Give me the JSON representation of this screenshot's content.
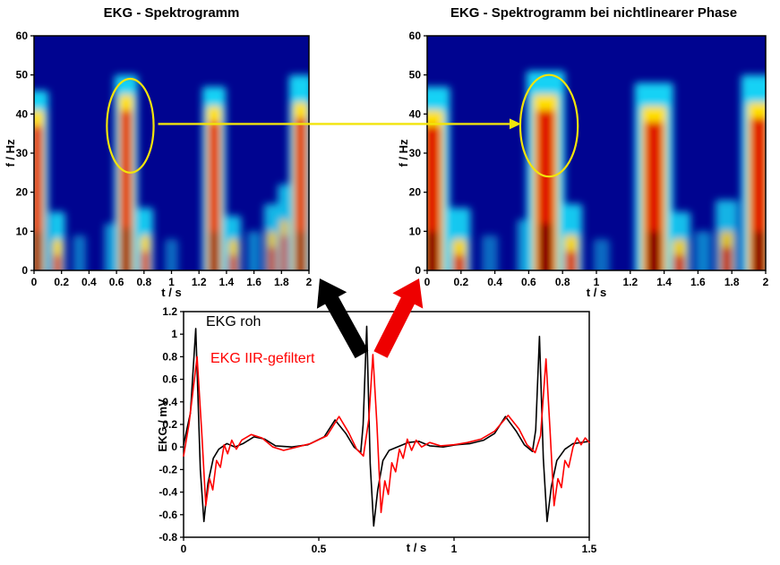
{
  "annotations": {
    "highlight_color": "#f2e40a",
    "connector_arrow": {
      "color": "#f2e40a"
    },
    "raw_arrow": {
      "color": "#000000"
    },
    "filtered_arrow": {
      "color": "#ee0000"
    },
    "left_ellipse": {
      "t": 0.7,
      "f": 37,
      "rt": 0.17,
      "rf": 12
    },
    "right_ellipse": {
      "t": 0.72,
      "f": 37,
      "rt": 0.17,
      "rf": 13
    }
  },
  "chart_data": [
    {
      "id": "spectrogram_left",
      "type": "heatmap",
      "title": "EKG - Spektrogramm",
      "xlabel": "t / s",
      "ylabel": "f / Hz",
      "xlim": [
        0,
        2
      ],
      "ylim": [
        0,
        60
      ],
      "xticks": [
        "0",
        "0.2",
        "0.4",
        "0.6",
        "0.8",
        "1",
        "1.2",
        "1.4",
        "1.6",
        "1.8",
        "2"
      ],
      "yticks": [
        "0",
        "10",
        "20",
        "30",
        "40",
        "50",
        "60"
      ],
      "colormap": "jet",
      "colors": {
        "background": "#000490",
        "cool": "#17d2f5",
        "mid": "#ffe000",
        "hot": "#e01800",
        "dark": "#7d0000"
      },
      "bursts": [
        {
          "t": 0.02,
          "w": 0.09,
          "cool": 46,
          "hot": 37,
          "dark": 10,
          "a": 1
        },
        {
          "t": 0.17,
          "w": 0.06,
          "cool": 15,
          "hot": 4,
          "dark": 0,
          "a": 0.95
        },
        {
          "t": 0.33,
          "w": 0.05,
          "cool": 9,
          "hot": 0,
          "dark": 0,
          "a": 0.55
        },
        {
          "t": 0.56,
          "w": 0.05,
          "cool": 12,
          "hot": 0,
          "dark": 0,
          "a": 0.7
        },
        {
          "t": 0.67,
          "w": 0.09,
          "cool": 50,
          "hot": 41,
          "dark": 11,
          "a": 1
        },
        {
          "t": 0.81,
          "w": 0.06,
          "cool": 16,
          "hot": 5,
          "dark": 0,
          "a": 0.95
        },
        {
          "t": 1.0,
          "w": 0.05,
          "cool": 8,
          "hot": 0,
          "dark": 0,
          "a": 0.5
        },
        {
          "t": 1.31,
          "w": 0.09,
          "cool": 47,
          "hot": 38,
          "dark": 10,
          "a": 1
        },
        {
          "t": 1.45,
          "w": 0.06,
          "cool": 14,
          "hot": 4,
          "dark": 0,
          "a": 0.9
        },
        {
          "t": 1.6,
          "w": 0.05,
          "cool": 10,
          "hot": 0,
          "dark": 0,
          "a": 0.6
        },
        {
          "t": 1.73,
          "w": 0.06,
          "cool": 17,
          "hot": 6,
          "dark": 0,
          "a": 0.85
        },
        {
          "t": 1.82,
          "w": 0.05,
          "cool": 22,
          "hot": 9,
          "dark": 0,
          "a": 0.85
        },
        {
          "t": 1.94,
          "w": 0.09,
          "cool": 50,
          "hot": 39,
          "dark": 10,
          "a": 1
        }
      ]
    },
    {
      "id": "spectrogram_right",
      "type": "heatmap",
      "title": "EKG - Spektrogramm  bei nichtlinearer Phase",
      "xlabel": "t / s",
      "ylabel": "f / Hz",
      "xlim": [
        0,
        2
      ],
      "ylim": [
        0,
        60
      ],
      "xticks": [
        "0",
        "0.2",
        "0.4",
        "0.6",
        "0.8",
        "1",
        "1.2",
        "1.4",
        "1.6",
        "1.8",
        "2"
      ],
      "yticks": [
        "0",
        "10",
        "20",
        "30",
        "40",
        "50",
        "60"
      ],
      "colormap": "jet",
      "colors": {
        "background": "#000490",
        "cool": "#17d2f5",
        "mid": "#ffe000",
        "hot": "#e01800",
        "dark": "#7d0000"
      },
      "bursts": [
        {
          "t": 0.03,
          "w": 0.11,
          "cool": 47,
          "hot": 37,
          "dark": 10,
          "a": 1
        },
        {
          "t": 0.19,
          "w": 0.07,
          "cool": 16,
          "hot": 4,
          "dark": 0,
          "a": 0.95
        },
        {
          "t": 0.37,
          "w": 0.05,
          "cool": 9,
          "hot": 0,
          "dark": 0,
          "a": 0.5
        },
        {
          "t": 0.58,
          "w": 0.05,
          "cool": 13,
          "hot": 0,
          "dark": 0,
          "a": 0.7
        },
        {
          "t": 0.7,
          "w": 0.12,
          "cool": 51,
          "hot": 41,
          "dark": 12,
          "a": 1
        },
        {
          "t": 0.85,
          "w": 0.07,
          "cool": 17,
          "hot": 5,
          "dark": 0,
          "a": 0.95
        },
        {
          "t": 1.03,
          "w": 0.05,
          "cool": 8,
          "hot": 0,
          "dark": 0,
          "a": 0.5
        },
        {
          "t": 1.34,
          "w": 0.12,
          "cool": 48,
          "hot": 38,
          "dark": 10,
          "a": 1
        },
        {
          "t": 1.49,
          "w": 0.07,
          "cool": 15,
          "hot": 4,
          "dark": 0,
          "a": 0.9
        },
        {
          "t": 1.63,
          "w": 0.05,
          "cool": 10,
          "hot": 0,
          "dark": 0,
          "a": 0.6
        },
        {
          "t": 1.77,
          "w": 0.07,
          "cool": 18,
          "hot": 6,
          "dark": 0,
          "a": 0.85
        },
        {
          "t": 1.96,
          "w": 0.11,
          "cool": 50,
          "hot": 39,
          "dark": 10,
          "a": 1
        }
      ]
    },
    {
      "id": "ecg_time_plot",
      "type": "line",
      "xlabel": "t / s",
      "ylabel": "EKG / mV",
      "xlim": [
        0,
        1.5
      ],
      "ylim": [
        -0.8,
        1.2
      ],
      "xticks": [
        "0",
        "0.5",
        "1",
        "1.5"
      ],
      "yticks": [
        "-0.8",
        "-0.6",
        "-0.4",
        "-0.2",
        "0",
        "0.2",
        "0.4",
        "0.6",
        "0.8",
        "1",
        "1.2"
      ],
      "legend_position": "top-left-inside",
      "series": [
        {
          "name": "EKG roh",
          "color": "#000000",
          "points": [
            [
              0.0,
              0.02
            ],
            [
              0.025,
              0.3
            ],
            [
              0.045,
              1.05
            ],
            [
              0.062,
              -0.2
            ],
            [
              0.075,
              -0.66
            ],
            [
              0.09,
              -0.32
            ],
            [
              0.11,
              -0.1
            ],
            [
              0.13,
              -0.02
            ],
            [
              0.16,
              0.03
            ],
            [
              0.19,
              0.0
            ],
            [
              0.22,
              0.03
            ],
            [
              0.26,
              0.09
            ],
            [
              0.3,
              0.07
            ],
            [
              0.34,
              0.01
            ],
            [
              0.4,
              0.0
            ],
            [
              0.46,
              0.02
            ],
            [
              0.52,
              0.09
            ],
            [
              0.56,
              0.24
            ],
            [
              0.6,
              0.12
            ],
            [
              0.63,
              0.0
            ],
            [
              0.655,
              -0.05
            ],
            [
              0.664,
              0.2
            ],
            [
              0.677,
              1.07
            ],
            [
              0.69,
              -0.15
            ],
            [
              0.703,
              -0.7
            ],
            [
              0.718,
              -0.38
            ],
            [
              0.737,
              -0.12
            ],
            [
              0.76,
              -0.03
            ],
            [
              0.79,
              0.0
            ],
            [
              0.83,
              0.04
            ],
            [
              0.87,
              0.05
            ],
            [
              0.91,
              0.01
            ],
            [
              0.96,
              0.0
            ],
            [
              1.01,
              0.02
            ],
            [
              1.06,
              0.03
            ],
            [
              1.11,
              0.06
            ],
            [
              1.15,
              0.12
            ],
            [
              1.19,
              0.27
            ],
            [
              1.23,
              0.14
            ],
            [
              1.26,
              0.02
            ],
            [
              1.29,
              -0.04
            ],
            [
              1.302,
              0.15
            ],
            [
              1.316,
              0.98
            ],
            [
              1.33,
              -0.1
            ],
            [
              1.344,
              -0.66
            ],
            [
              1.36,
              -0.35
            ],
            [
              1.38,
              -0.12
            ],
            [
              1.41,
              -0.02
            ],
            [
              1.44,
              0.03
            ],
            [
              1.47,
              0.04
            ],
            [
              1.5,
              0.05
            ]
          ]
        },
        {
          "name": "EKG IIR-gefiltert",
          "color": "#ff0000",
          "points": [
            [
              0.0,
              -0.08
            ],
            [
              0.02,
              0.2
            ],
            [
              0.05,
              0.8
            ],
            [
              0.068,
              0.1
            ],
            [
              0.082,
              -0.52
            ],
            [
              0.096,
              -0.28
            ],
            [
              0.108,
              -0.38
            ],
            [
              0.122,
              -0.12
            ],
            [
              0.136,
              -0.18
            ],
            [
              0.15,
              0.02
            ],
            [
              0.163,
              -0.06
            ],
            [
              0.178,
              0.06
            ],
            [
              0.195,
              -0.02
            ],
            [
              0.215,
              0.06
            ],
            [
              0.25,
              0.11
            ],
            [
              0.29,
              0.08
            ],
            [
              0.33,
              0.0
            ],
            [
              0.37,
              -0.03
            ],
            [
              0.42,
              0.0
            ],
            [
              0.47,
              0.03
            ],
            [
              0.53,
              0.1
            ],
            [
              0.575,
              0.27
            ],
            [
              0.61,
              0.13
            ],
            [
              0.64,
              -0.02
            ],
            [
              0.665,
              -0.08
            ],
            [
              0.685,
              0.25
            ],
            [
              0.7,
              0.82
            ],
            [
              0.715,
              0.2
            ],
            [
              0.73,
              -0.58
            ],
            [
              0.744,
              -0.3
            ],
            [
              0.757,
              -0.42
            ],
            [
              0.77,
              -0.14
            ],
            [
              0.784,
              -0.22
            ],
            [
              0.798,
              -0.02
            ],
            [
              0.812,
              -0.1
            ],
            [
              0.827,
              0.07
            ],
            [
              0.843,
              -0.03
            ],
            [
              0.86,
              0.06
            ],
            [
              0.88,
              0.0
            ],
            [
              0.91,
              0.04
            ],
            [
              0.95,
              0.01
            ],
            [
              1.0,
              0.02
            ],
            [
              1.05,
              0.04
            ],
            [
              1.1,
              0.07
            ],
            [
              1.15,
              0.14
            ],
            [
              1.2,
              0.28
            ],
            [
              1.24,
              0.16
            ],
            [
              1.27,
              0.02
            ],
            [
              1.3,
              -0.05
            ],
            [
              1.32,
              0.1
            ],
            [
              1.34,
              0.78
            ],
            [
              1.355,
              0.15
            ],
            [
              1.37,
              -0.52
            ],
            [
              1.384,
              -0.28
            ],
            [
              1.397,
              -0.36
            ],
            [
              1.41,
              -0.12
            ],
            [
              1.424,
              -0.18
            ],
            [
              1.44,
              0.0
            ],
            [
              1.455,
              0.08
            ],
            [
              1.47,
              0.02
            ],
            [
              1.485,
              0.08
            ],
            [
              1.5,
              0.04
            ]
          ]
        }
      ]
    }
  ]
}
